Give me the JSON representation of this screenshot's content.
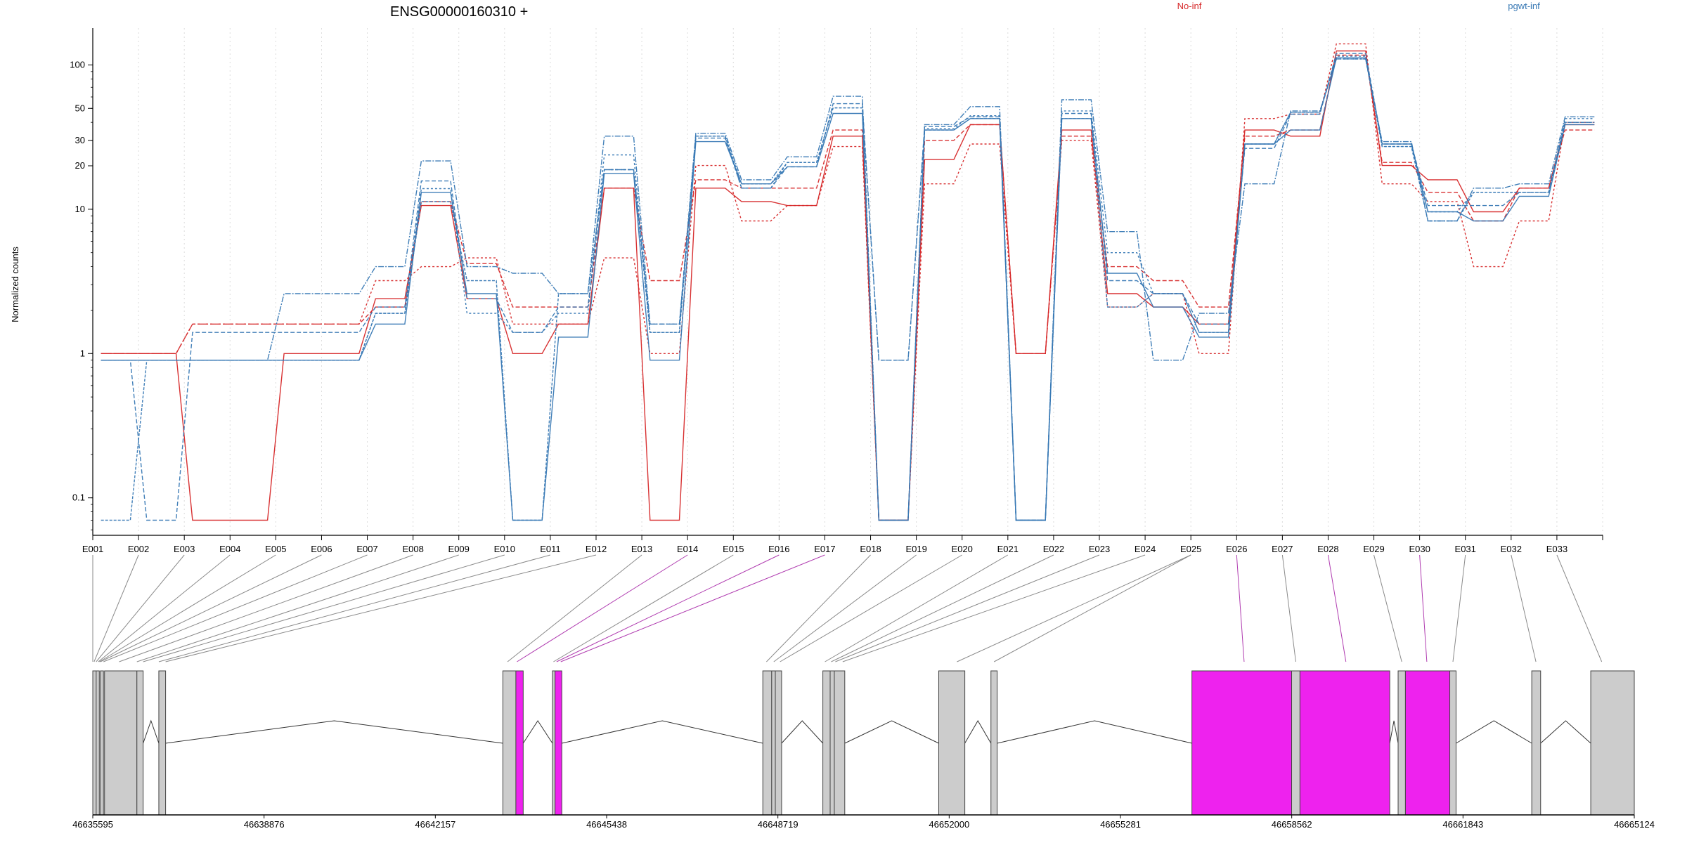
{
  "chart_data": {
    "type": "line",
    "title": "ENSG00000160310 +",
    "ylabel": "Normalized counts",
    "y_scale": "log",
    "y_ticks": [
      0.1,
      1,
      10,
      20,
      30,
      50,
      100
    ],
    "categories": [
      "E001",
      "E002",
      "E003",
      "E004",
      "E005",
      "E006",
      "E007",
      "E008",
      "E009",
      "E010",
      "E011",
      "E012",
      "E013",
      "E014",
      "E015",
      "E016",
      "E017",
      "E018",
      "E019",
      "E020",
      "E021",
      "E022",
      "E023",
      "E024",
      "E025",
      "E026",
      "E027",
      "E028",
      "E029",
      "E030",
      "E031",
      "E032",
      "E033"
    ],
    "legend": [
      {
        "name": "No-inf",
        "color": "#d62728"
      },
      {
        "name": "pgwt-inf",
        "color": "#3778b4"
      }
    ],
    "series": [
      {
        "group": "No-inf",
        "values": [
          1.0,
          1.0,
          0.07,
          0.07,
          1.0,
          1.0,
          2.4,
          10.6,
          2.4,
          1.0,
          1.6,
          14.0,
          0.07,
          14.0,
          11.3,
          10.6,
          32.1,
          0.07,
          22.1,
          38.6,
          1.0,
          35.4,
          2.6,
          2.1,
          1.6,
          35.4,
          32.1,
          125,
          20.1,
          16.0,
          9.6,
          14.0,
          38.6
        ]
      },
      {
        "group": "No-inf",
        "values": [
          1.0,
          1.0,
          1.6,
          1.6,
          1.6,
          1.6,
          2.1,
          11.3,
          4.2,
          2.1,
          2.1,
          14.0,
          3.2,
          16.0,
          14.0,
          14.0,
          35.4,
          0.07,
          30.0,
          38.6,
          1.0,
          32.1,
          4.0,
          3.2,
          2.1,
          32.1,
          35.4,
          117,
          21.1,
          13.1,
          8.3,
          14.0,
          35.4
        ]
      },
      {
        "group": "No-inf",
        "values": [
          1.0,
          1.0,
          1.6,
          1.6,
          1.6,
          1.6,
          3.2,
          4.0,
          4.6,
          1.6,
          1.6,
          4.6,
          1.0,
          20.1,
          8.3,
          10.6,
          27.2,
          0.07,
          15.0,
          28.3,
          1.0,
          30.0,
          2.1,
          2.6,
          1.0,
          42.5,
          45.6,
          140,
          15.0,
          11.3,
          4.0,
          8.3,
          40.0
        ]
      },
      {
        "group": "pgwt-inf",
        "values": [
          0.9,
          0.9,
          0.9,
          0.9,
          0.9,
          0.9,
          1.6,
          13.1,
          2.6,
          0.07,
          1.3,
          17.7,
          0.9,
          29.4,
          15.0,
          19.7,
          46.1,
          0.07,
          35.4,
          42.5,
          0.07,
          42.5,
          3.6,
          2.1,
          1.3,
          28.3,
          35.4,
          112,
          28.3,
          9.6,
          8.3,
          12.3,
          38.6
        ]
      },
      {
        "group": "pgwt-inf",
        "values": [
          0.9,
          0.07,
          1.4,
          1.4,
          1.4,
          1.4,
          2.1,
          15.7,
          2.4,
          1.4,
          2.1,
          18.8,
          1.6,
          31.1,
          14.0,
          19.7,
          53.9,
          0.9,
          37.4,
          43.7,
          0.07,
          46.1,
          3.2,
          2.6,
          1.6,
          26.4,
          45.6,
          120,
          28.3,
          10.6,
          10.6,
          13.1,
          40.0
        ]
      },
      {
        "group": "pgwt-inf",
        "values": [
          0.9,
          0.9,
          0.9,
          0.9,
          0.9,
          0.9,
          1.9,
          13.9,
          1.9,
          1.4,
          1.9,
          23.8,
          1.4,
          32.1,
          14.0,
          21.1,
          50.4,
          0.9,
          36.1,
          44.5,
          0.07,
          48.0,
          5.0,
          2.6,
          1.4,
          28.3,
          47.0,
          115,
          27.2,
          9.6,
          13.1,
          13.1,
          42.5
        ]
      },
      {
        "group": "pgwt-inf",
        "values": [
          0.9,
          0.9,
          0.9,
          0.9,
          2.6,
          2.6,
          4.0,
          21.6,
          4.0,
          3.6,
          2.6,
          32.1,
          1.6,
          33.6,
          16.0,
          23.1,
          60.6,
          0.07,
          38.6,
          51.4,
          0.07,
          57.4,
          7.0,
          0.9,
          1.9,
          15.0,
          48.0,
          110,
          29.4,
          8.3,
          14.0,
          15.0,
          43.7
        ]
      },
      {
        "group": "pgwt-inf",
        "values": [
          0.07,
          0.9,
          0.9,
          0.9,
          0.9,
          0.9,
          1.9,
          11.3,
          3.2,
          0.07,
          2.6,
          18.8,
          1.4,
          32.1,
          15.0,
          21.1,
          50.4,
          0.07,
          35.4,
          42.5,
          0.07,
          42.5,
          2.1,
          2.6,
          1.4,
          28.3,
          47.0,
          110,
          27.2,
          8.3,
          13.1,
          13.1,
          40.0
        ]
      }
    ],
    "genomic_axis": {
      "tick_labels": [
        "46635595",
        "46638876",
        "46642157",
        "46645438",
        "46648719",
        "46652000",
        "46655281",
        "46658562",
        "46661843",
        "46665124"
      ],
      "start": 46635595,
      "end": 46665124,
      "exons": [
        {
          "start": 46635595,
          "end": 46635700,
          "highlight": false
        },
        {
          "start": 46635660,
          "end": 46635720,
          "highlight": false
        },
        {
          "start": 46635740,
          "end": 46635800,
          "highlight": false
        },
        {
          "start": 46635820,
          "end": 46636440,
          "highlight": false
        },
        {
          "start": 46636440,
          "end": 46636560,
          "highlight": false
        },
        {
          "start": 46636860,
          "end": 46636990,
          "highlight": false
        },
        {
          "start": 46643450,
          "end": 46643700,
          "highlight": false
        },
        {
          "start": 46643700,
          "end": 46643840,
          "highlight": true
        },
        {
          "start": 46644400,
          "end": 46644450,
          "highlight": false
        },
        {
          "start": 46644450,
          "end": 46644580,
          "highlight": true
        },
        {
          "start": 46648430,
          "end": 46648600,
          "highlight": false
        },
        {
          "start": 46648600,
          "end": 46648670,
          "highlight": false
        },
        {
          "start": 46648670,
          "end": 46648790,
          "highlight": false
        },
        {
          "start": 46649580,
          "end": 46649720,
          "highlight": false
        },
        {
          "start": 46649720,
          "end": 46649800,
          "highlight": false
        },
        {
          "start": 46649800,
          "end": 46650000,
          "highlight": false
        },
        {
          "start": 46651800,
          "end": 46652300,
          "highlight": false
        },
        {
          "start": 46652800,
          "end": 46652920,
          "highlight": false
        },
        {
          "start": 46656650,
          "end": 46658560,
          "highlight": true
        },
        {
          "start": 46658560,
          "end": 46658720,
          "highlight": false
        },
        {
          "start": 46658720,
          "end": 46660440,
          "highlight": true
        },
        {
          "start": 46660600,
          "end": 46660740,
          "highlight": false
        },
        {
          "start": 46660740,
          "end": 46661590,
          "highlight": true
        },
        {
          "start": 46661590,
          "end": 46661710,
          "highlight": false
        },
        {
          "start": 46663160,
          "end": 46663330,
          "highlight": false
        },
        {
          "start": 46664290,
          "end": 46665124,
          "highlight": false
        }
      ],
      "introns": [
        {
          "start": 46636560,
          "end": 46636860
        },
        {
          "start": 46636990,
          "end": 46643450
        },
        {
          "start": 46643840,
          "end": 46644400
        },
        {
          "start": 46644580,
          "end": 46648430
        },
        {
          "start": 46648790,
          "end": 46649580
        },
        {
          "start": 46650000,
          "end": 46651800
        },
        {
          "start": 46652300,
          "end": 46652800
        },
        {
          "start": 46652920,
          "end": 46656650
        },
        {
          "start": 46660440,
          "end": 46660600
        },
        {
          "start": 46661710,
          "end": 46663160
        },
        {
          "start": 46663330,
          "end": 46664290
        }
      ],
      "connectors": [
        {
          "bin": "E001",
          "pos": 46635595,
          "highlight": false
        },
        {
          "bin": "E002",
          "pos": 46635620,
          "highlight": false
        },
        {
          "bin": "E003",
          "pos": 46635660,
          "highlight": false
        },
        {
          "bin": "E004",
          "pos": 46635700,
          "highlight": false
        },
        {
          "bin": "E005",
          "pos": 46635720,
          "highlight": false
        },
        {
          "bin": "E006",
          "pos": 46635740,
          "highlight": false
        },
        {
          "bin": "E007",
          "pos": 46635800,
          "highlight": false
        },
        {
          "bin": "E008",
          "pos": 46636100,
          "highlight": false
        },
        {
          "bin": "E009",
          "pos": 46636440,
          "highlight": false
        },
        {
          "bin": "E010",
          "pos": 46636560,
          "highlight": false
        },
        {
          "bin": "E011",
          "pos": 46636860,
          "highlight": false
        },
        {
          "bin": "E012",
          "pos": 46636990,
          "highlight": false
        },
        {
          "bin": "E013",
          "pos": 46643540,
          "highlight": false
        },
        {
          "bin": "E014",
          "pos": 46643720,
          "highlight": true
        },
        {
          "bin": "E015",
          "pos": 46644420,
          "highlight": false
        },
        {
          "bin": "E016",
          "pos": 46644480,
          "highlight": true
        },
        {
          "bin": "E017",
          "pos": 46644560,
          "highlight": true
        },
        {
          "bin": "E018",
          "pos": 46648500,
          "highlight": false
        },
        {
          "bin": "E019",
          "pos": 46648640,
          "highlight": false
        },
        {
          "bin": "E020",
          "pos": 46648760,
          "highlight": false
        },
        {
          "bin": "E021",
          "pos": 46649620,
          "highlight": false
        },
        {
          "bin": "E022",
          "pos": 46649740,
          "highlight": false
        },
        {
          "bin": "E023",
          "pos": 46649820,
          "highlight": false
        },
        {
          "bin": "E024",
          "pos": 46649960,
          "highlight": false
        },
        {
          "bin": "E025",
          "pos": 46652150,
          "highlight": false
        },
        {
          "bin": "E025",
          "pos": 46652860,
          "highlight": false
        },
        {
          "bin": "E026",
          "pos": 46657650,
          "highlight": true
        },
        {
          "bin": "E027",
          "pos": 46658640,
          "highlight": false
        },
        {
          "bin": "E028",
          "pos": 46659600,
          "highlight": true
        },
        {
          "bin": "E029",
          "pos": 46660670,
          "highlight": false
        },
        {
          "bin": "E030",
          "pos": 46661150,
          "highlight": true
        },
        {
          "bin": "E031",
          "pos": 46661650,
          "highlight": false
        },
        {
          "bin": "E032",
          "pos": 46663240,
          "highlight": false
        },
        {
          "bin": "E033",
          "pos": 46664500,
          "highlight": false
        }
      ]
    }
  }
}
